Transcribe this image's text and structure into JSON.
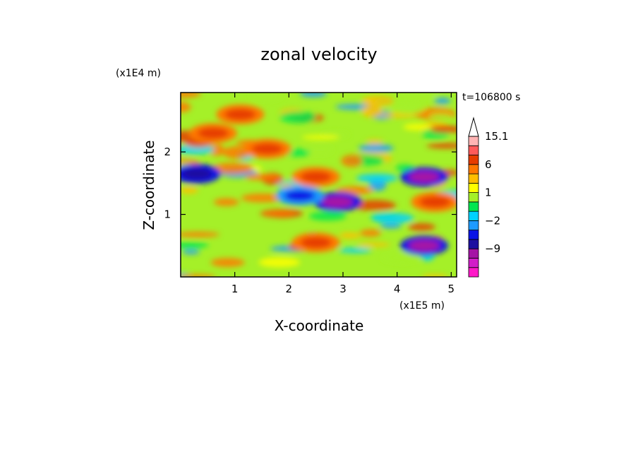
{
  "chart_data": {
    "type": "heatmap",
    "title": "zonal velocity",
    "xlabel": "X-coordinate",
    "ylabel": "Z-coordinate",
    "x_multiplier": "(x1E5 m)",
    "y_multiplier": "(x1E4 m)",
    "time_label": "t=106800 s",
    "xlim": [
      0,
      5.1
    ],
    "ylim": [
      0,
      2.95
    ],
    "x_ticks": [
      "1",
      "2",
      "3",
      "4",
      "5"
    ],
    "y_ticks": [
      "1",
      "2"
    ],
    "colorbar": {
      "levels": [
        -15,
        -12,
        -9,
        -6,
        -3,
        -2,
        -1,
        0,
        1,
        2,
        3,
        6,
        9,
        12,
        15.1
      ],
      "labels": [
        "15.1",
        "6",
        "1",
        "−2",
        "−9"
      ],
      "colors": [
        "#ff19c8",
        "#d21ec8",
        "#a514a5",
        "#1e0fa0",
        "#0a14e6",
        "#1e9bff",
        "#00d2ff",
        "#00e650",
        "#a5f028",
        "#ffff00",
        "#ffbe00",
        "#ff7800",
        "#e63c00",
        "#ff5a5a",
        "#ffb4b4"
      ],
      "extend": "max"
    },
    "features": [
      {
        "x": 0.6,
        "z": 2.3,
        "u": 8
      },
      {
        "x": 1.1,
        "z": 2.6,
        "u": 8
      },
      {
        "x": 1.6,
        "z": 2.05,
        "u": 8
      },
      {
        "x": 0.3,
        "z": 1.65,
        "u": -8
      },
      {
        "x": 2.5,
        "z": 1.6,
        "u": 7
      },
      {
        "x": 2.9,
        "z": 1.2,
        "u": -10
      },
      {
        "x": 2.2,
        "z": 1.3,
        "u": -5
      },
      {
        "x": 2.5,
        "z": 0.55,
        "u": 8
      },
      {
        "x": 4.7,
        "z": 1.2,
        "u": 7
      },
      {
        "x": 4.5,
        "z": 0.5,
        "u": -12
      },
      {
        "x": 4.5,
        "z": 1.6,
        "u": -10
      }
    ]
  }
}
